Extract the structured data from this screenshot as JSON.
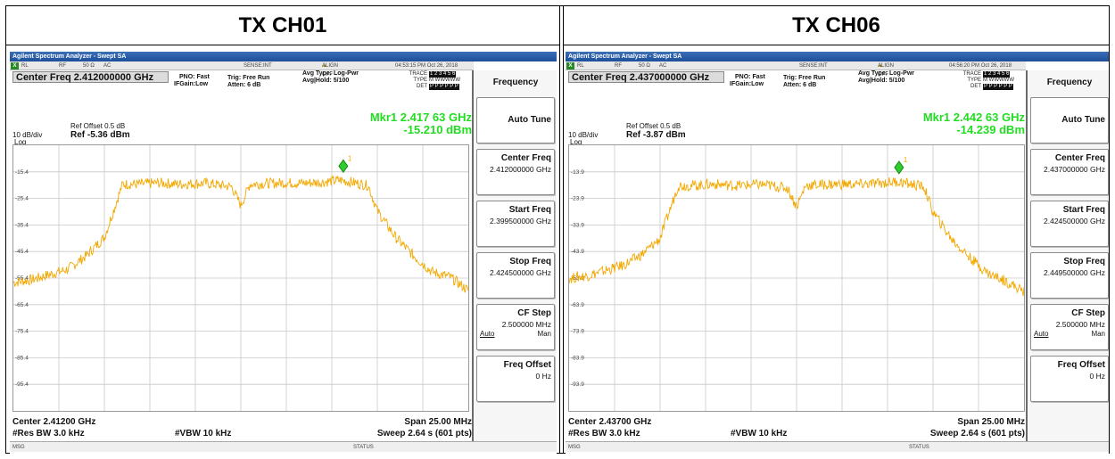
{
  "headings": [
    "TX CH01",
    "TX CH06"
  ],
  "common": {
    "window_title": "Agilent Spectrum Analyzer - Swept SA",
    "status_rl": "RL",
    "status_rf": "RF",
    "status_imp": "50 Ω",
    "status_ac": "AC",
    "status_sense": "SENSE:INT",
    "status_align": "ALIGN OFF",
    "pno": "PNO: Fast",
    "ifgain": "IFGain:Low",
    "trig": "Trig: Free Run",
    "atten": "Atten: 6 dB",
    "avg_type": "Avg Type: Log-Pwr",
    "avg_hold": "Avg|Hold: 5/100",
    "trace_label": "TRACE",
    "type_label": "TYPE",
    "det_label": "DET",
    "trace_nums": "1 2 3 4 5 6",
    "type_vals": "M WWWWW",
    "det_vals": "P P P P P P",
    "ref_offset": "Ref Offset 0.5 dB",
    "scale": "10 dB/div",
    "log": "Log",
    "res_bw": "#Res BW 3.0 kHz",
    "vbw": "#VBW 10 kHz",
    "span": "Span 25.00 MHz",
    "sweep": "Sweep  2.64 s (601 pts)",
    "msg": "MSG",
    "status": "STATUS",
    "marker_symbol": "1",
    "softkeys": {
      "menu": "Frequency",
      "auto_tune": "Auto Tune",
      "center_freq": "Center Freq",
      "start_freq": "Start Freq",
      "stop_freq": "Stop Freq",
      "cf_step": "CF Step",
      "cf_step_value": "2.500000 MHz",
      "auto": "Auto",
      "man": "Man",
      "freq_offset": "Freq Offset",
      "freq_offset_value": "0 Hz"
    }
  },
  "panels": [
    {
      "time": "04:53:15 PM Oct 26, 2018",
      "center_freq_box": "Center Freq  2.412000000 GHz",
      "ref_level": "Ref -5.36 dBm",
      "marker_freq": "Mkr1 2.417 63 GHz",
      "marker_level": "-15.210 dBm",
      "center_bottom": "Center 2.41200 GHz",
      "sk_center": "2.412000000 GHz",
      "sk_start": "2.399500000 GHz",
      "sk_stop": "2.424500000 GHz",
      "y_ticks": [
        "-15.4",
        "-25.4",
        "-35.4",
        "-45.4",
        "-55.4",
        "-65.4",
        "-75.4",
        "-85.4",
        "-95.4"
      ]
    },
    {
      "time": "04:56:20 PM Oct 26, 2018",
      "center_freq_box": "Center Freq  2.437000000 GHz",
      "ref_level": "Ref -3.87 dBm",
      "marker_freq": "Mkr1 2.442 63 GHz",
      "marker_level": "-14.239 dBm",
      "center_bottom": "Center 2.43700 GHz",
      "sk_center": "2.437000000 GHz",
      "sk_start": "2.424500000 GHz",
      "sk_stop": "2.449500000 GHz",
      "y_ticks": [
        "-13.9",
        "-23.9",
        "-33.9",
        "-43.9",
        "-53.9",
        "-63.9",
        "-73.9",
        "-83.9",
        "-93.9"
      ]
    }
  ],
  "chart_data": [
    {
      "type": "line",
      "title": "TX CH01",
      "xlabel": "",
      "ylabel": "",
      "x_unit": "GHz",
      "y_unit": "dBm",
      "xlim": [
        2.3995,
        2.4245
      ],
      "ylim": [
        -105.36,
        -5.36
      ],
      "grid": true,
      "marker": {
        "x": 2.41763,
        "y": -15.21
      },
      "series": [
        {
          "x": [
            2.3995,
            2.4005,
            2.4015,
            2.4025,
            2.4035,
            2.4045,
            2.405,
            2.4055,
            2.4065,
            2.4075,
            2.4085,
            2.4095,
            2.41,
            2.4105,
            2.4115,
            2.412,
            2.4125,
            2.4135,
            2.4145,
            2.4155,
            2.4165,
            2.4175,
            2.4185,
            2.419,
            2.4195,
            2.4205,
            2.4215,
            2.4225,
            2.4235,
            2.4245
          ],
          "y": [
            -57,
            -56,
            -54,
            -52,
            -47,
            -40,
            -30,
            -20,
            -20,
            -19.5,
            -20,
            -19.8,
            -19.6,
            -20,
            -21,
            -28,
            -20,
            -19.7,
            -19.5,
            -19.6,
            -19.2,
            -18.5,
            -19.8,
            -20.5,
            -30,
            -40,
            -47,
            -53,
            -55,
            -60
          ]
        }
      ]
    },
    {
      "type": "line",
      "title": "TX CH06",
      "xlabel": "",
      "ylabel": "",
      "x_unit": "GHz",
      "y_unit": "dBm",
      "xlim": [
        2.4245,
        2.4495
      ],
      "ylim": [
        -103.87,
        -3.87
      ],
      "grid": true,
      "marker": {
        "x": 2.44263,
        "y": -14.239
      },
      "series": [
        {
          "x": [
            2.4245,
            2.4255,
            2.4265,
            2.4275,
            2.4285,
            2.4295,
            2.43,
            2.4305,
            2.4315,
            2.4325,
            2.4335,
            2.4345,
            2.435,
            2.4355,
            2.4365,
            2.437,
            2.4375,
            2.4385,
            2.4395,
            2.4405,
            2.4415,
            2.4425,
            2.4435,
            2.444,
            2.4445,
            2.4455,
            2.4465,
            2.4475,
            2.4485,
            2.4495
          ],
          "y": [
            -54,
            -53,
            -51,
            -49,
            -45,
            -39,
            -29,
            -19,
            -19,
            -18.5,
            -19,
            -18.8,
            -18.6,
            -19,
            -20,
            -27,
            -19,
            -18.7,
            -18.5,
            -18.6,
            -18.2,
            -17.5,
            -18.8,
            -19.5,
            -29,
            -39,
            -46,
            -52,
            -55,
            -59
          ]
        }
      ]
    }
  ]
}
